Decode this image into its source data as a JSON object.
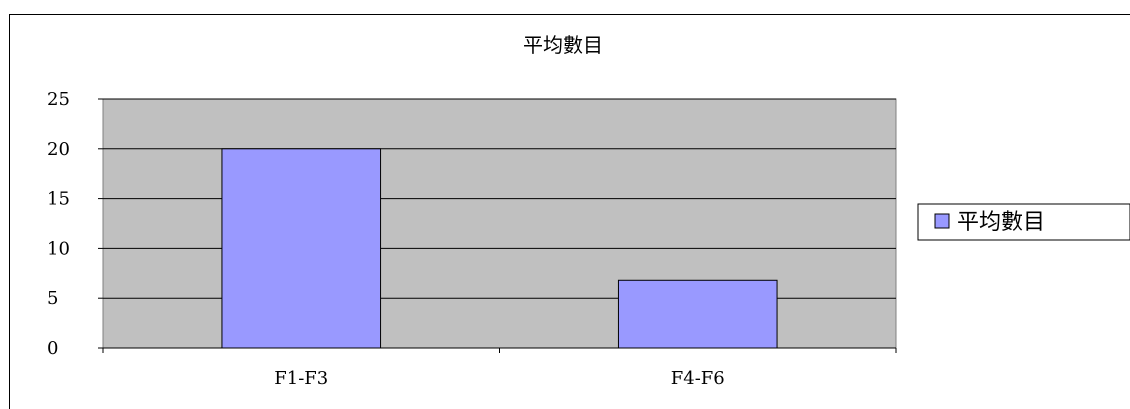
{
  "chart_data": {
    "type": "bar",
    "title": "平均數目",
    "xlabel": "",
    "ylabel": "",
    "categories": [
      "F1-F3",
      "F4-F6"
    ],
    "series": [
      {
        "name": "平均數目",
        "values": [
          20,
          6.8
        ],
        "color": "#9999ff"
      }
    ],
    "ylim": [
      0,
      25
    ],
    "yticks": [
      "0",
      "5",
      "10",
      "15",
      "20",
      "25"
    ],
    "grid": true,
    "legend": "right",
    "plot_background": "#c0c0c0"
  }
}
